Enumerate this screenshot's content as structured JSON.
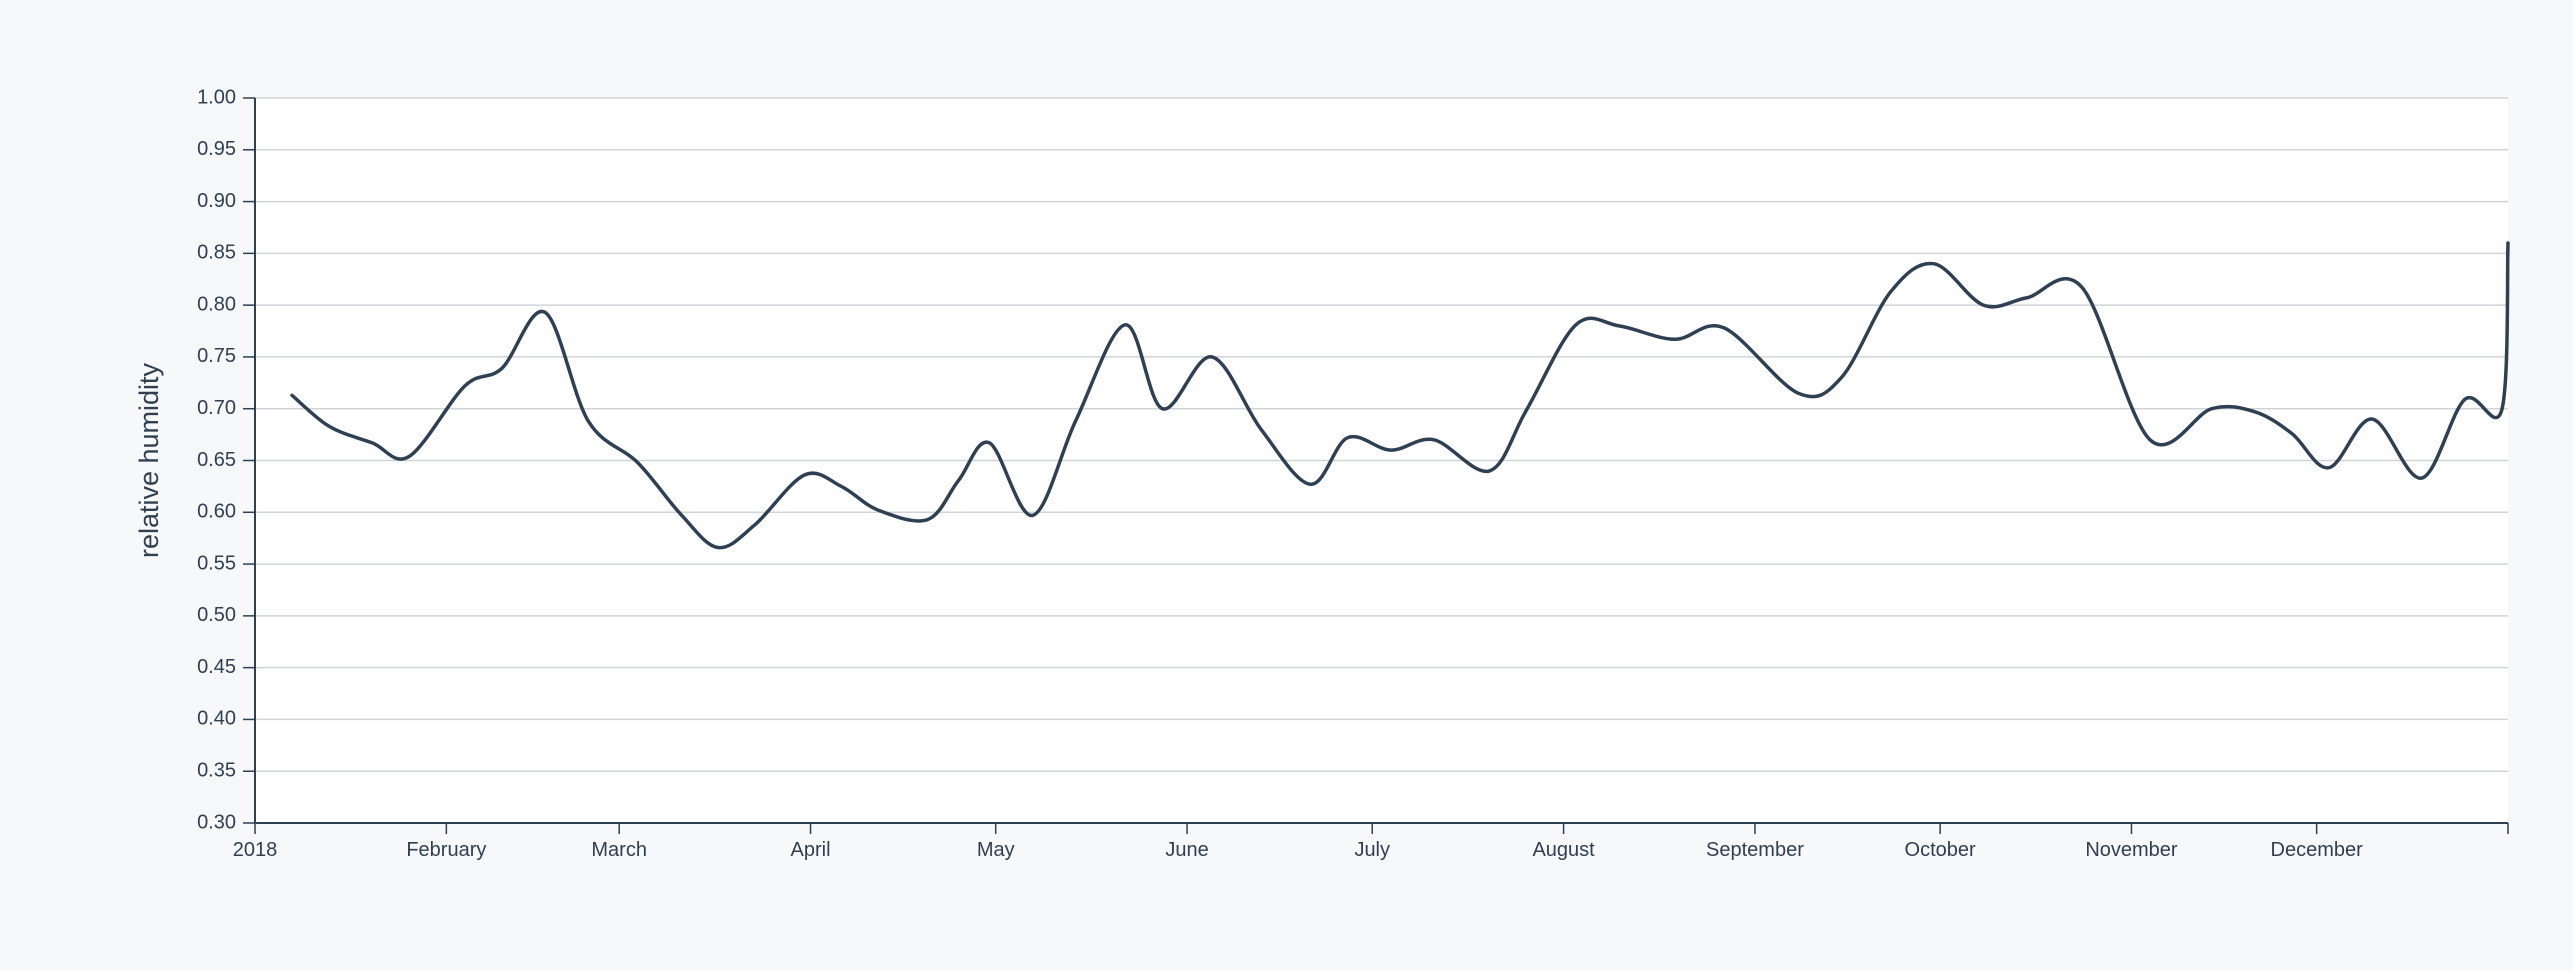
{
  "chart_data": {
    "type": "line",
    "title": "",
    "xlabel": "",
    "ylabel": "relative humidity",
    "ylim": [
      0.3,
      1.0
    ],
    "xlim": [
      "2018-01-01",
      "2019-01-01"
    ],
    "grid": "horizontal",
    "colors": {
      "line": "#2f4052",
      "grid": "#d0d4d9",
      "axis": "#2f4052",
      "text": "#2f4052",
      "plot_bg": "#ffffff"
    },
    "y_ticks": [
      "0.30",
      "0.35",
      "0.40",
      "0.45",
      "0.50",
      "0.55",
      "0.60",
      "0.65",
      "0.70",
      "0.75",
      "0.80",
      "0.85",
      "0.90",
      "0.95",
      "1.00"
    ],
    "x_ticks": [
      {
        "date": "2018-01-01",
        "label": "2018"
      },
      {
        "date": "2018-02-01",
        "label": "February"
      },
      {
        "date": "2018-03-01",
        "label": "March"
      },
      {
        "date": "2018-04-01",
        "label": "April"
      },
      {
        "date": "2018-05-01",
        "label": "May"
      },
      {
        "date": "2018-06-01",
        "label": "June"
      },
      {
        "date": "2018-07-01",
        "label": "July"
      },
      {
        "date": "2018-08-01",
        "label": "August"
      },
      {
        "date": "2018-09-01",
        "label": "September"
      },
      {
        "date": "2018-10-01",
        "label": "October"
      },
      {
        "date": "2018-11-01",
        "label": "November"
      },
      {
        "date": "2018-12-01",
        "label": "December"
      },
      {
        "date": "2019-01-01",
        "label": ""
      }
    ],
    "series": [
      {
        "x": [
          "2018-01-07",
          "2018-01-13",
          "2018-01-20",
          "2018-01-26",
          "2018-02-04",
          "2018-02-10",
          "2018-02-17",
          "2018-02-24",
          "2018-03-04",
          "2018-03-11",
          "2018-03-17",
          "2018-03-23",
          "2018-03-31",
          "2018-04-06",
          "2018-04-12",
          "2018-04-20",
          "2018-04-25",
          "2018-04-30",
          "2018-05-07",
          "2018-05-14",
          "2018-05-22",
          "2018-05-28",
          "2018-06-05",
          "2018-06-13",
          "2018-06-21",
          "2018-06-27",
          "2018-07-04",
          "2018-07-11",
          "2018-07-20",
          "2018-07-26",
          "2018-08-03",
          "2018-08-10",
          "2018-08-19",
          "2018-08-27",
          "2018-09-08",
          "2018-09-15",
          "2018-09-23",
          "2018-09-30",
          "2018-10-08",
          "2018-10-15",
          "2018-10-24",
          "2018-11-04",
          "2018-11-14",
          "2018-11-21",
          "2018-11-27",
          "2018-12-03",
          "2018-12-10",
          "2018-12-18",
          "2018-12-25",
          "2018-12-31"
        ],
        "values": [
          0.713,
          0.683,
          0.667,
          0.654,
          0.722,
          0.739,
          0.793,
          0.688,
          0.648,
          0.598,
          0.566,
          0.588,
          0.636,
          0.625,
          0.602,
          0.593,
          0.631,
          0.667,
          0.597,
          0.689,
          0.781,
          0.7,
          0.75,
          0.68,
          0.627,
          0.672,
          0.66,
          0.67,
          0.64,
          0.699,
          0.781,
          0.78,
          0.767,
          0.778,
          0.715,
          0.73,
          0.813,
          0.84,
          0.8,
          0.807,
          0.817,
          0.67,
          0.7,
          0.697,
          0.676,
          0.643,
          0.69,
          0.633,
          0.709,
          0.699
        ]
      },
      {
        "x": [
          "2019-01-01"
        ],
        "values": [
          0.86
        ]
      }
    ]
  }
}
